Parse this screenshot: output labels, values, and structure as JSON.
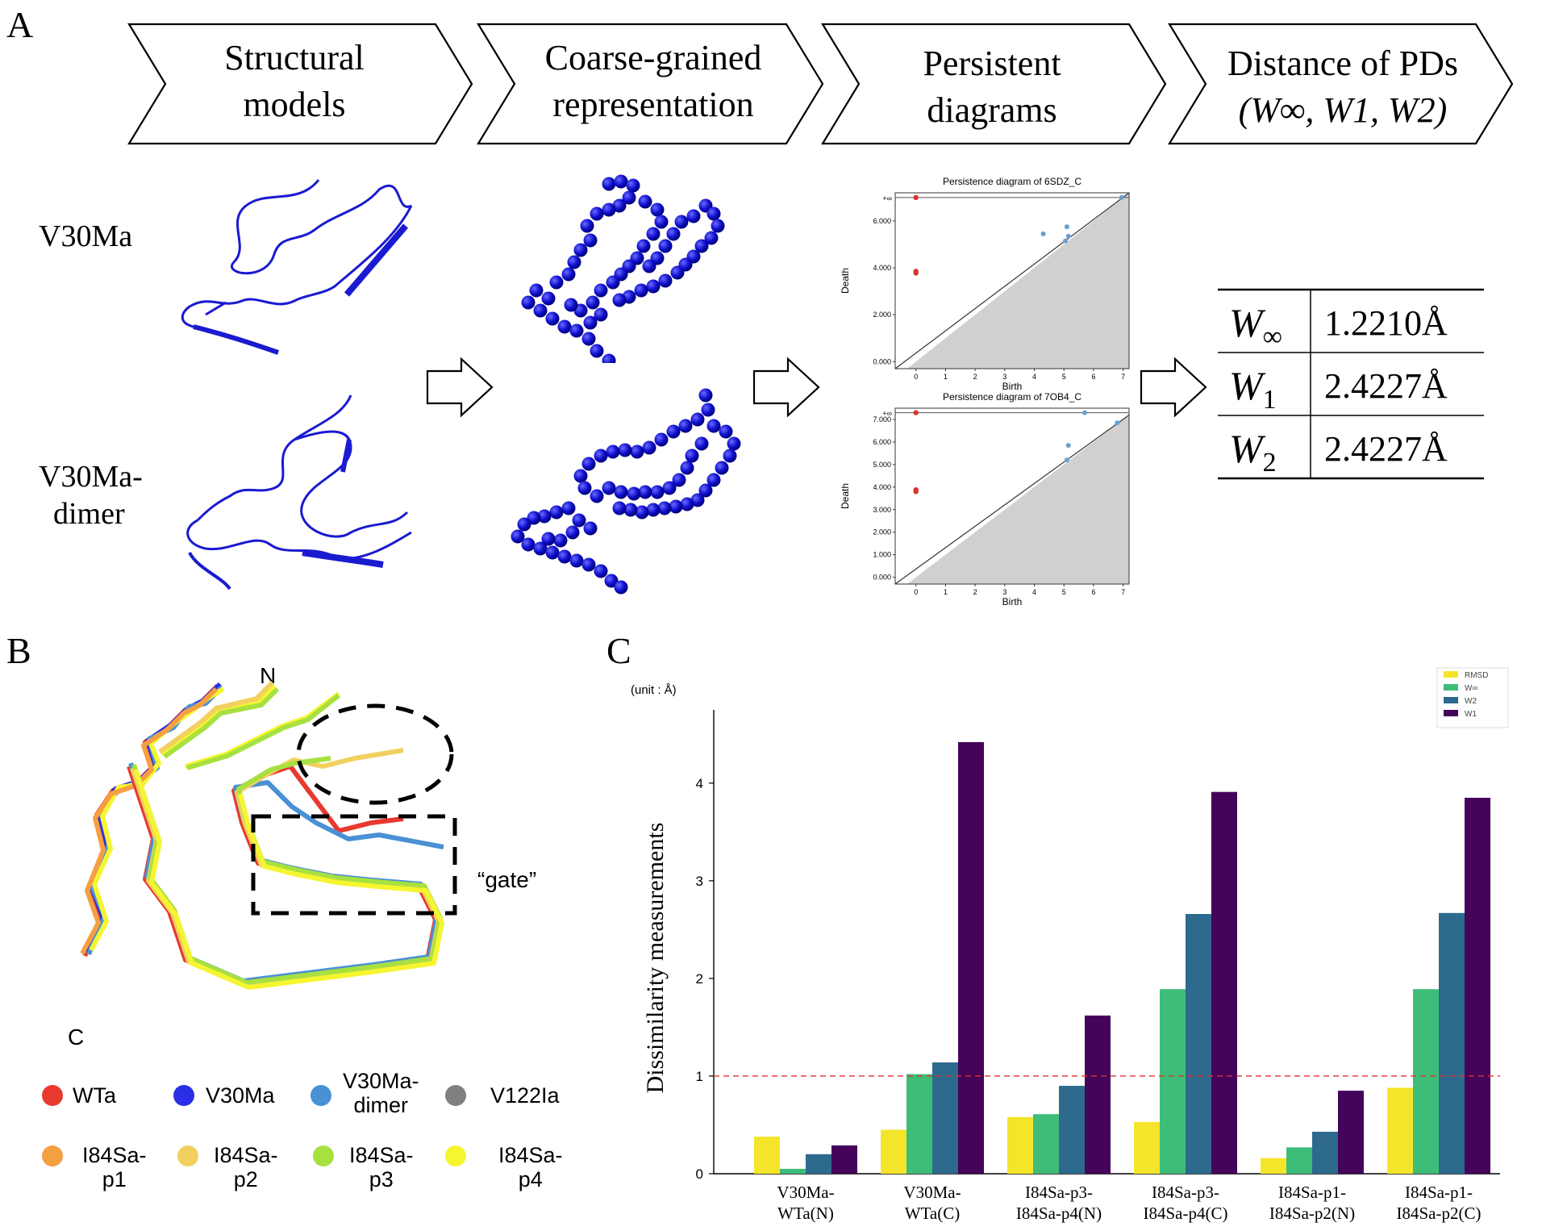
{
  "panels": {
    "a": "A",
    "b": "B",
    "c": "C"
  },
  "pipeline": {
    "steps": [
      {
        "line1": "Structural",
        "line2": "models"
      },
      {
        "line1": "Coarse-grained",
        "line2": "representation"
      },
      {
        "line1": "Persistent",
        "line2": "diagrams"
      },
      {
        "line1": "Distance of PDs",
        "line2": "(W∞, W1, W2)"
      }
    ],
    "rows": [
      {
        "line1": "V30Ma",
        "line2": ""
      },
      {
        "line1": "V30Ma-",
        "line2": "dimer"
      }
    ]
  },
  "distance_table": {
    "rows": [
      {
        "symbol": "W",
        "sub": "∞",
        "value": "1.2210Å"
      },
      {
        "symbol": "W",
        "sub": "1",
        "value": "2.4227Å"
      },
      {
        "symbol": "W",
        "sub": "2",
        "value": "2.4227Å"
      }
    ]
  },
  "persistence_diagrams": [
    {
      "type": "scatter",
      "title": "Persistence diagram of 6SDZ_C",
      "xlabel": "Birth",
      "ylabel": "Death",
      "xlim": [
        -0.7,
        7.2
      ],
      "ylim": [
        -0.3,
        7.2
      ],
      "inf_label": "+∞",
      "yticks": [
        "0.000",
        "2.000",
        "4.000",
        "6.000"
      ],
      "xticks": [
        "0",
        "1",
        "2",
        "3",
        "4",
        "5",
        "6",
        "7"
      ],
      "h0_points": [
        [
          0,
          3.78
        ],
        [
          0,
          3.85
        ]
      ],
      "h0_inf": [
        [
          0,
          7.0
        ]
      ],
      "h1_points": [
        [
          4.3,
          5.45
        ],
        [
          5.1,
          5.75
        ],
        [
          5.15,
          5.35
        ],
        [
          5.05,
          5.15
        ]
      ],
      "h1_inf": [
        [
          6.95,
          7.0
        ]
      ]
    },
    {
      "type": "scatter",
      "title": "Persistence diagram of 7OB4_C",
      "xlabel": "Birth",
      "ylabel": "Death",
      "xlim": [
        -0.7,
        7.2
      ],
      "ylim": [
        -0.3,
        7.5
      ],
      "inf_label": "+∞",
      "yticks": [
        "0.000",
        "1.000",
        "2.000",
        "3.000",
        "4.000",
        "5.000",
        "6.000",
        "7.000"
      ],
      "xticks": [
        "0",
        "1",
        "2",
        "3",
        "4",
        "5",
        "6",
        "7"
      ],
      "h0_points": [
        [
          0,
          3.8
        ],
        [
          0,
          3.88
        ]
      ],
      "h0_inf": [
        [
          0,
          7.3
        ]
      ],
      "h1_points": [
        [
          5.15,
          5.85
        ],
        [
          5.1,
          5.2
        ],
        [
          6.8,
          6.85
        ]
      ],
      "h1_inf": [
        [
          5.7,
          7.3
        ]
      ]
    }
  ],
  "structure_panel": {
    "n_label": "N",
    "c_label": "C",
    "gate_label": "“gate”",
    "legend": [
      {
        "label1": "WTa",
        "label2": "",
        "color": "#e8392f"
      },
      {
        "label1": "V30Ma",
        "label2": "",
        "color": "#2a2ee6"
      },
      {
        "label1": "V30Ma-",
        "label2": "dimer",
        "color": "#4a90d4"
      },
      {
        "label1": "V122Ia",
        "label2": "",
        "color": "#808080"
      },
      {
        "label1": "I84Sa-",
        "label2": "p1",
        "color": "#f5a040"
      },
      {
        "label1": "I84Sa-",
        "label2": "p2",
        "color": "#f2d060"
      },
      {
        "label1": "I84Sa-",
        "label2": "p3",
        "color": "#a8e040"
      },
      {
        "label1": "I84Sa-",
        "label2": "p4",
        "color": "#f5f530"
      }
    ]
  },
  "chart_data": {
    "type": "bar",
    "unit_label": "(unit : Å)",
    "ylabel": "Dissimilarity measurements",
    "ylim": [
      0,
      4.75
    ],
    "yticks": [
      0,
      1,
      2,
      3,
      4
    ],
    "reference_line": 1.0,
    "categories": [
      {
        "line1": "V30Ma-",
        "line2": "WTa(N)"
      },
      {
        "line1": "V30Ma-",
        "line2": "WTa(C)"
      },
      {
        "line1": "I84Sa-p3-",
        "line2": "I84Sa-p4(N)"
      },
      {
        "line1": "I84Sa-p3-",
        "line2": "I84Sa-p4(C)"
      },
      {
        "line1": "I84Sa-p1-",
        "line2": "I84Sa-p2(N)"
      },
      {
        "line1": "I84Sa-p1-",
        "line2": "I84Sa-p2(C)"
      }
    ],
    "series": [
      {
        "name": "RMSD",
        "color": "#f5e52a",
        "values": [
          0.38,
          0.45,
          0.58,
          0.53,
          0.16,
          0.88
        ]
      },
      {
        "name": "W∞",
        "color": "#3dbd78",
        "values": [
          0.05,
          1.02,
          0.61,
          1.89,
          0.27,
          1.89
        ]
      },
      {
        "name": "W2",
        "color": "#2e6a8e",
        "values": [
          0.2,
          1.14,
          0.9,
          2.66,
          0.43,
          2.67
        ]
      },
      {
        "name": "W1",
        "color": "#44045a",
        "values": [
          0.29,
          4.42,
          1.62,
          3.91,
          0.85,
          3.85
        ]
      }
    ]
  }
}
